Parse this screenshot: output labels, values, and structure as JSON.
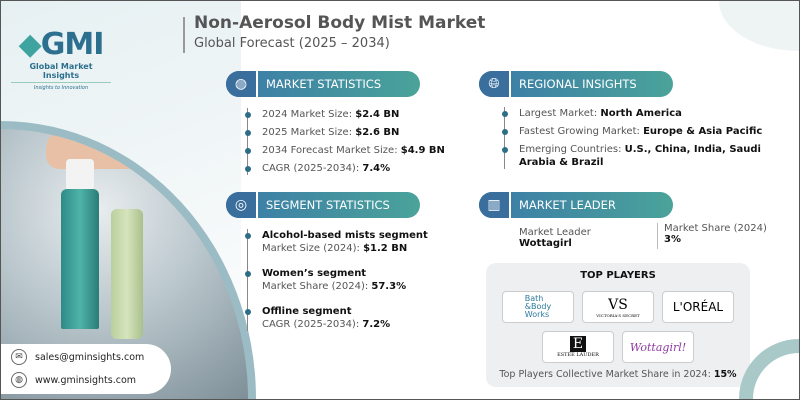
{
  "brand": {
    "logo": "GMI",
    "name": "Global Market Insights",
    "tagline": "Insights to Innovation"
  },
  "header": {
    "title": "Non-Aerosol Body Mist Market",
    "subtitle": "Global Forecast (2025 – 2034)"
  },
  "market_statistics": {
    "title": "MARKET STATISTICS",
    "items": [
      {
        "label": "2024 Market Size: ",
        "value": "$2.4 BN"
      },
      {
        "label": "2025 Market Size: ",
        "value": "$2.6 BN"
      },
      {
        "label": "2034 Forecast Market Size: ",
        "value": "$4.9 BN"
      },
      {
        "label": "CAGR (2025-2034): ",
        "value": "7.4%"
      }
    ]
  },
  "regional_insights": {
    "title": "REGIONAL INSIGHTS",
    "items": [
      {
        "label": "Largest Market: ",
        "value": "North America"
      },
      {
        "label": "Fastest Growing Market: ",
        "value": "Europe & Asia Pacific"
      },
      {
        "label": "Emerging Countries: ",
        "value": "U.S., China, India, Saudi Arabia & Brazil"
      }
    ]
  },
  "segment_statistics": {
    "title": "SEGMENT STATISTICS",
    "items": [
      {
        "heading": "Alcohol-based mists segment",
        "label": "Market Size (2024): ",
        "value": "$1.2 BN"
      },
      {
        "heading": "Women’s segment",
        "label": "Market Share (2024): ",
        "value": "57.3%"
      },
      {
        "heading": "Offline segment",
        "label": "CAGR (2025-2034): ",
        "value": "7.2%"
      }
    ]
  },
  "market_leader": {
    "title": "MARKET LEADER",
    "leader_label": "Market Leader",
    "leader": "Wottagirl",
    "share_label": "Market Share (2024)",
    "share": "3%"
  },
  "top_players": {
    "title": "TOP PLAYERS",
    "logos": [
      "Bath & Body Works",
      "Victoria's Secret",
      "L'ORÉAL",
      "Estée Lauder",
      "Wottagirl!"
    ],
    "footer_label": "Top Players Collective Market Share in 2024: ",
    "footer_value": "15%"
  },
  "contact": {
    "email": "sales@gminsights.com",
    "website": "www.gminsights.com"
  },
  "colors": {
    "accent_blue": "#3b7aa8",
    "accent_teal": "#4aa39a"
  }
}
